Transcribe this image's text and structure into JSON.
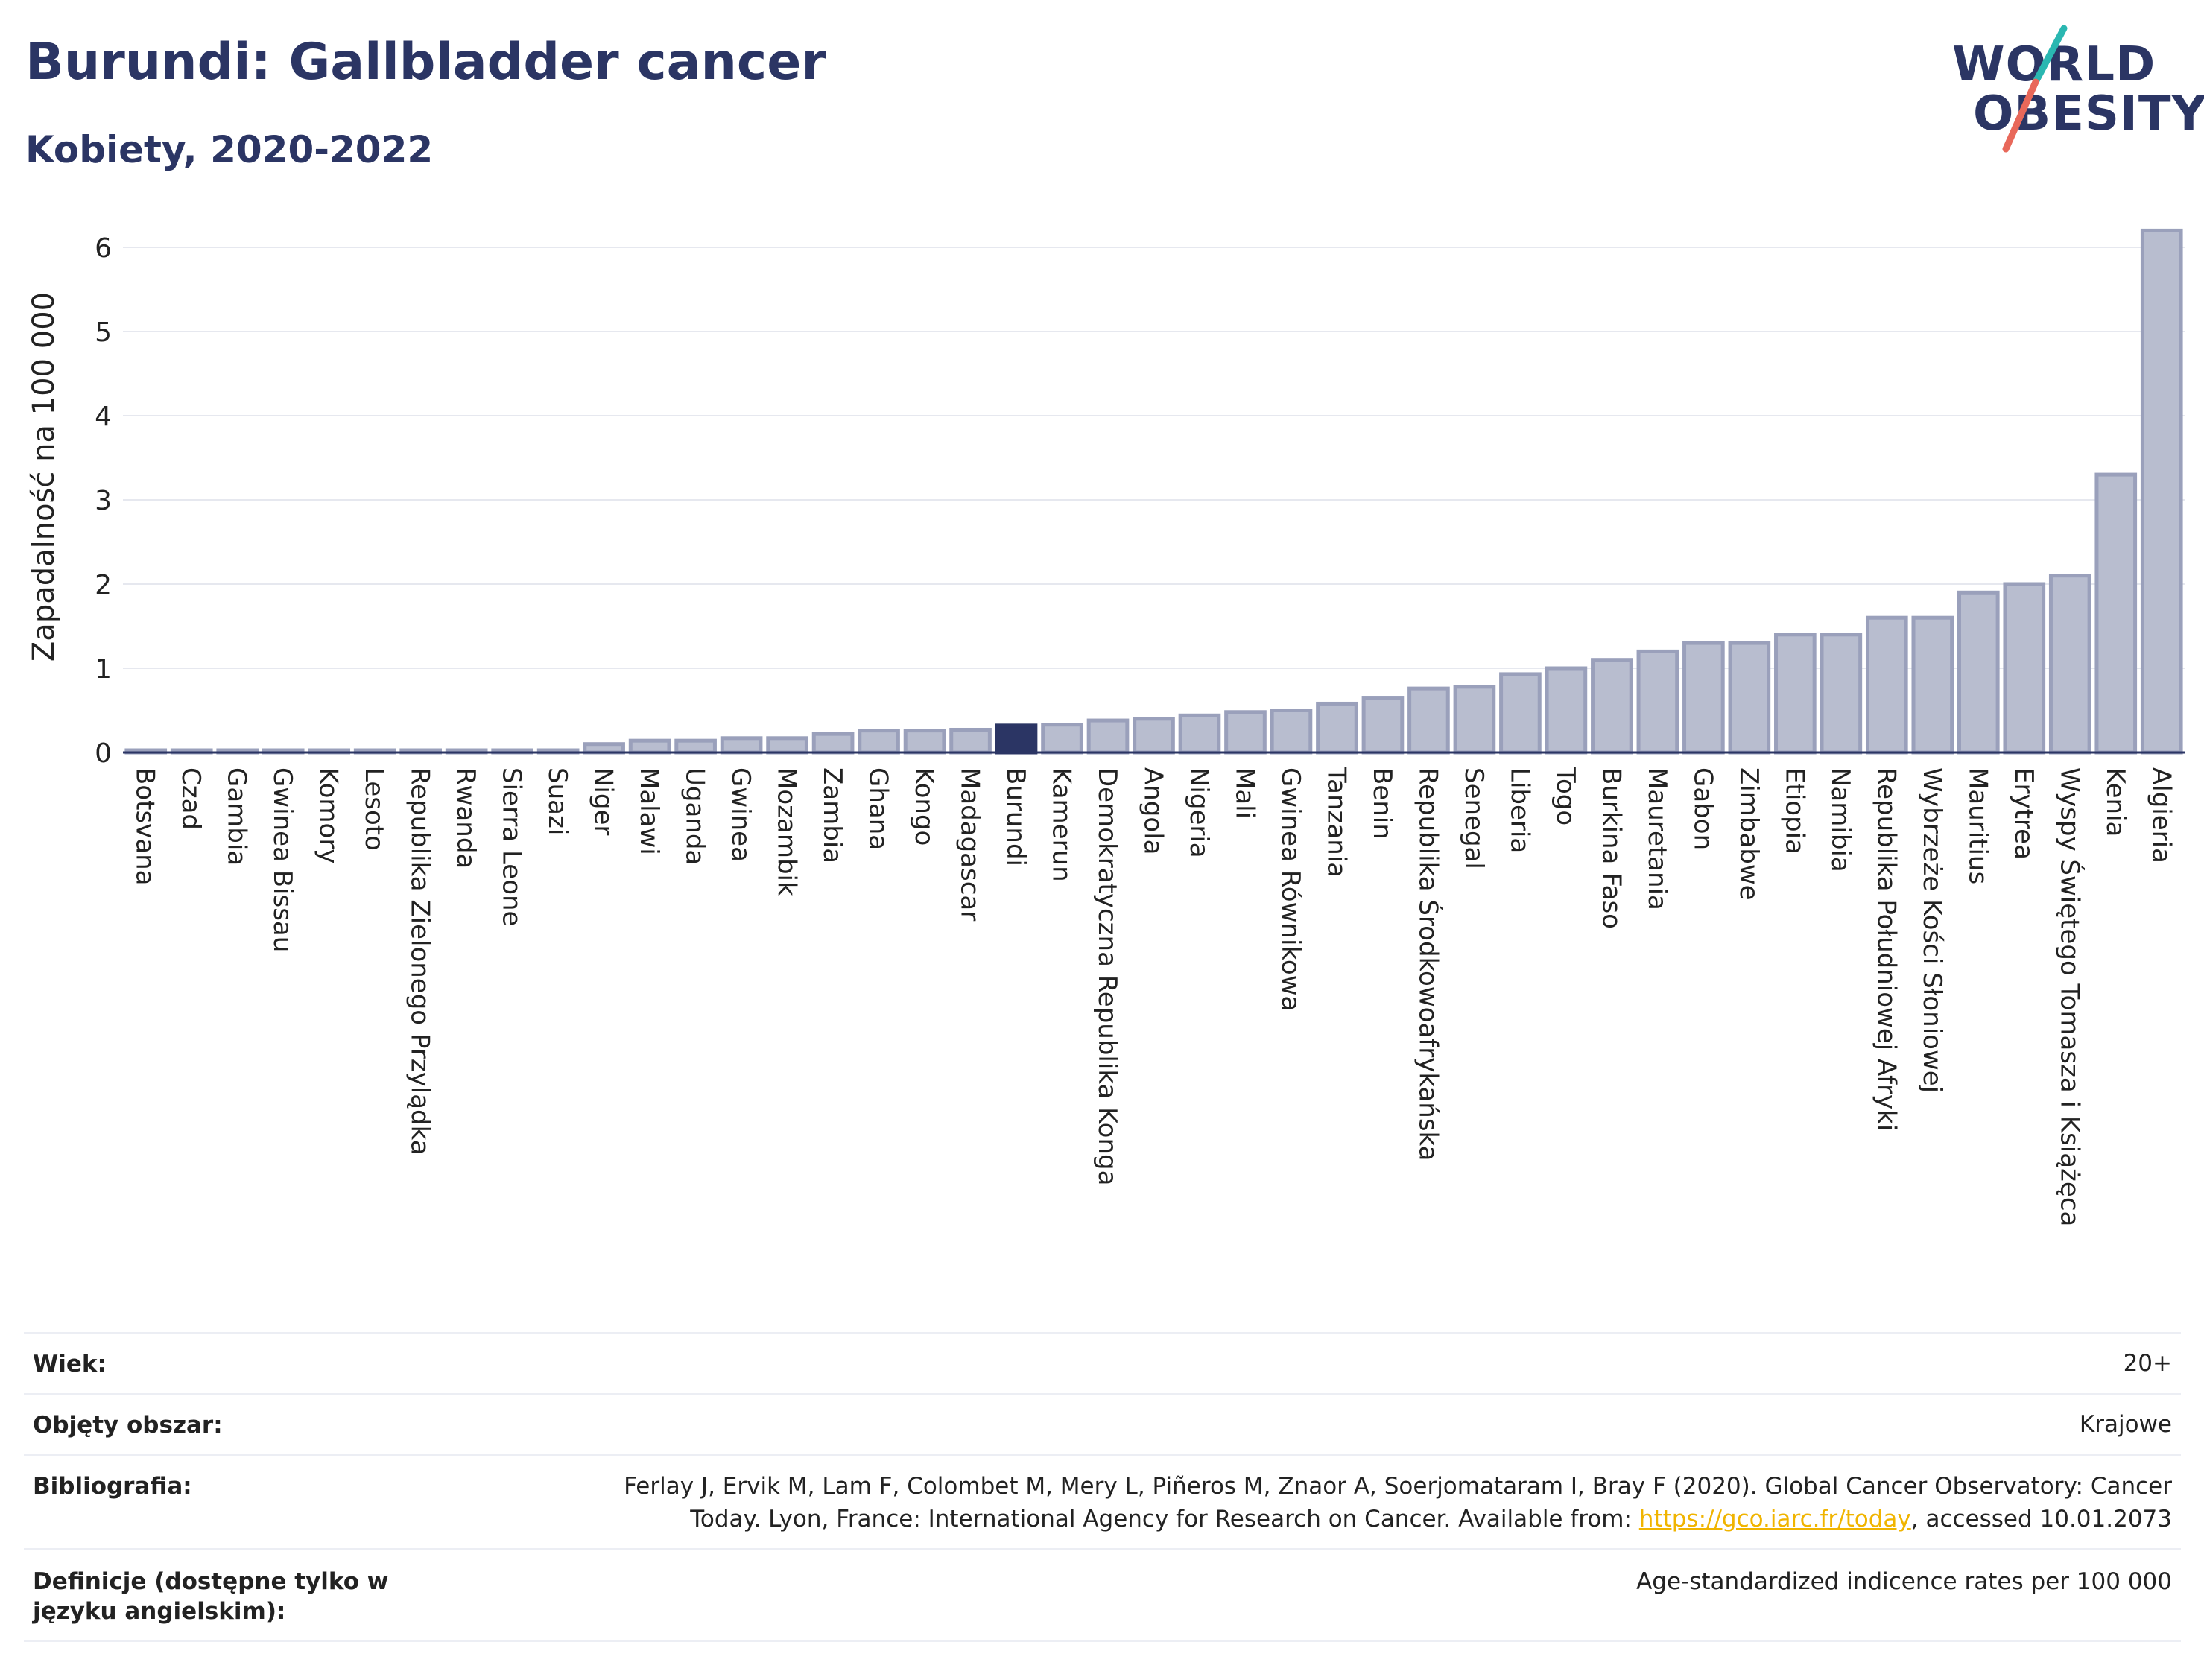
{
  "header": {
    "title": "Burundi: Gallbladder cancer",
    "subtitle": "Kobiety, 2020-2022"
  },
  "logo": {
    "line1": "WORLD",
    "line2": "OBESITY",
    "slash_colors": [
      "#2ab7b1",
      "#e8685a"
    ]
  },
  "colors": {
    "bar": "#b8bdcf",
    "bar_border": "#9aa0bb",
    "highlight": "#2b3564",
    "grid": "#e6e8ef",
    "axis_text": "#222222"
  },
  "chart_data": {
    "type": "bar",
    "ylabel": "Zapadalność na 100 000",
    "ylim": [
      0,
      6.5
    ],
    "yticks": [
      0,
      1,
      2,
      3,
      4,
      5,
      6
    ],
    "highlight": "Burundi",
    "grid": true,
    "categories": [
      "Botsvana",
      "Czad",
      "Gambia",
      "Gwinea Bissau",
      "Komory",
      "Lesoto",
      "Republika Zielonego Przylądka",
      "Rwanda",
      "Sierra Leone",
      "Suazi",
      "Niger",
      "Malawi",
      "Uganda",
      "Gwinea",
      "Mozambik",
      "Zambia",
      "Ghana",
      "Kongo",
      "Madagascar",
      "Burundi",
      "Kamerun",
      "Demokratyczna Republika Konga",
      "Angola",
      "Nigeria",
      "Mali",
      "Gwinea Równikowa",
      "Tanzania",
      "Benin",
      "Republika Środkowoafrykańska",
      "Senegal",
      "Liberia",
      "Togo",
      "Burkina Faso",
      "Mauretania",
      "Gabon",
      "Zimbabwe",
      "Etiopia",
      "Namibia",
      "Republika Południowej Afryki",
      "Wybrzeże Kości Słoniowej",
      "Mauritius",
      "Erytrea",
      "Wyspy Świętego Tomasza i Książęca",
      "Kenia",
      "Algieria"
    ],
    "values": [
      0.02,
      0.02,
      0.02,
      0.02,
      0.02,
      0.02,
      0.02,
      0.02,
      0.02,
      0.02,
      0.1,
      0.14,
      0.14,
      0.17,
      0.17,
      0.22,
      0.26,
      0.26,
      0.27,
      0.32,
      0.33,
      0.38,
      0.4,
      0.44,
      0.48,
      0.5,
      0.58,
      0.65,
      0.76,
      0.78,
      0.93,
      1.0,
      1.1,
      1.2,
      1.3,
      1.3,
      1.4,
      1.4,
      1.6,
      1.6,
      1.9,
      2.0,
      2.1,
      3.3,
      6.2
    ]
  },
  "info": {
    "rows": [
      {
        "label": "Wiek:",
        "value": "20+"
      },
      {
        "label": "Objęty obszar:",
        "value": "Krajowe"
      },
      {
        "label": "Bibliografia:",
        "value_line1": "Ferlay J, Ervik M, Lam F, Colombet M, Mery L, Piñeros M, Znaor A, Soerjomataram I, Bray F (2020). Global Cancer Observatory: Cancer",
        "value_line2_pre": "Today. Lyon, France: International Agency for Research on Cancer. Available from: ",
        "link": "https://gco.iarc.fr/today",
        "value_line2_post": ", accessed 10.01.2073"
      },
      {
        "label": "Definicje (dostępne tylko w języku angielskim):",
        "value": "Age-standardized indicence rates per 100 000"
      }
    ]
  }
}
